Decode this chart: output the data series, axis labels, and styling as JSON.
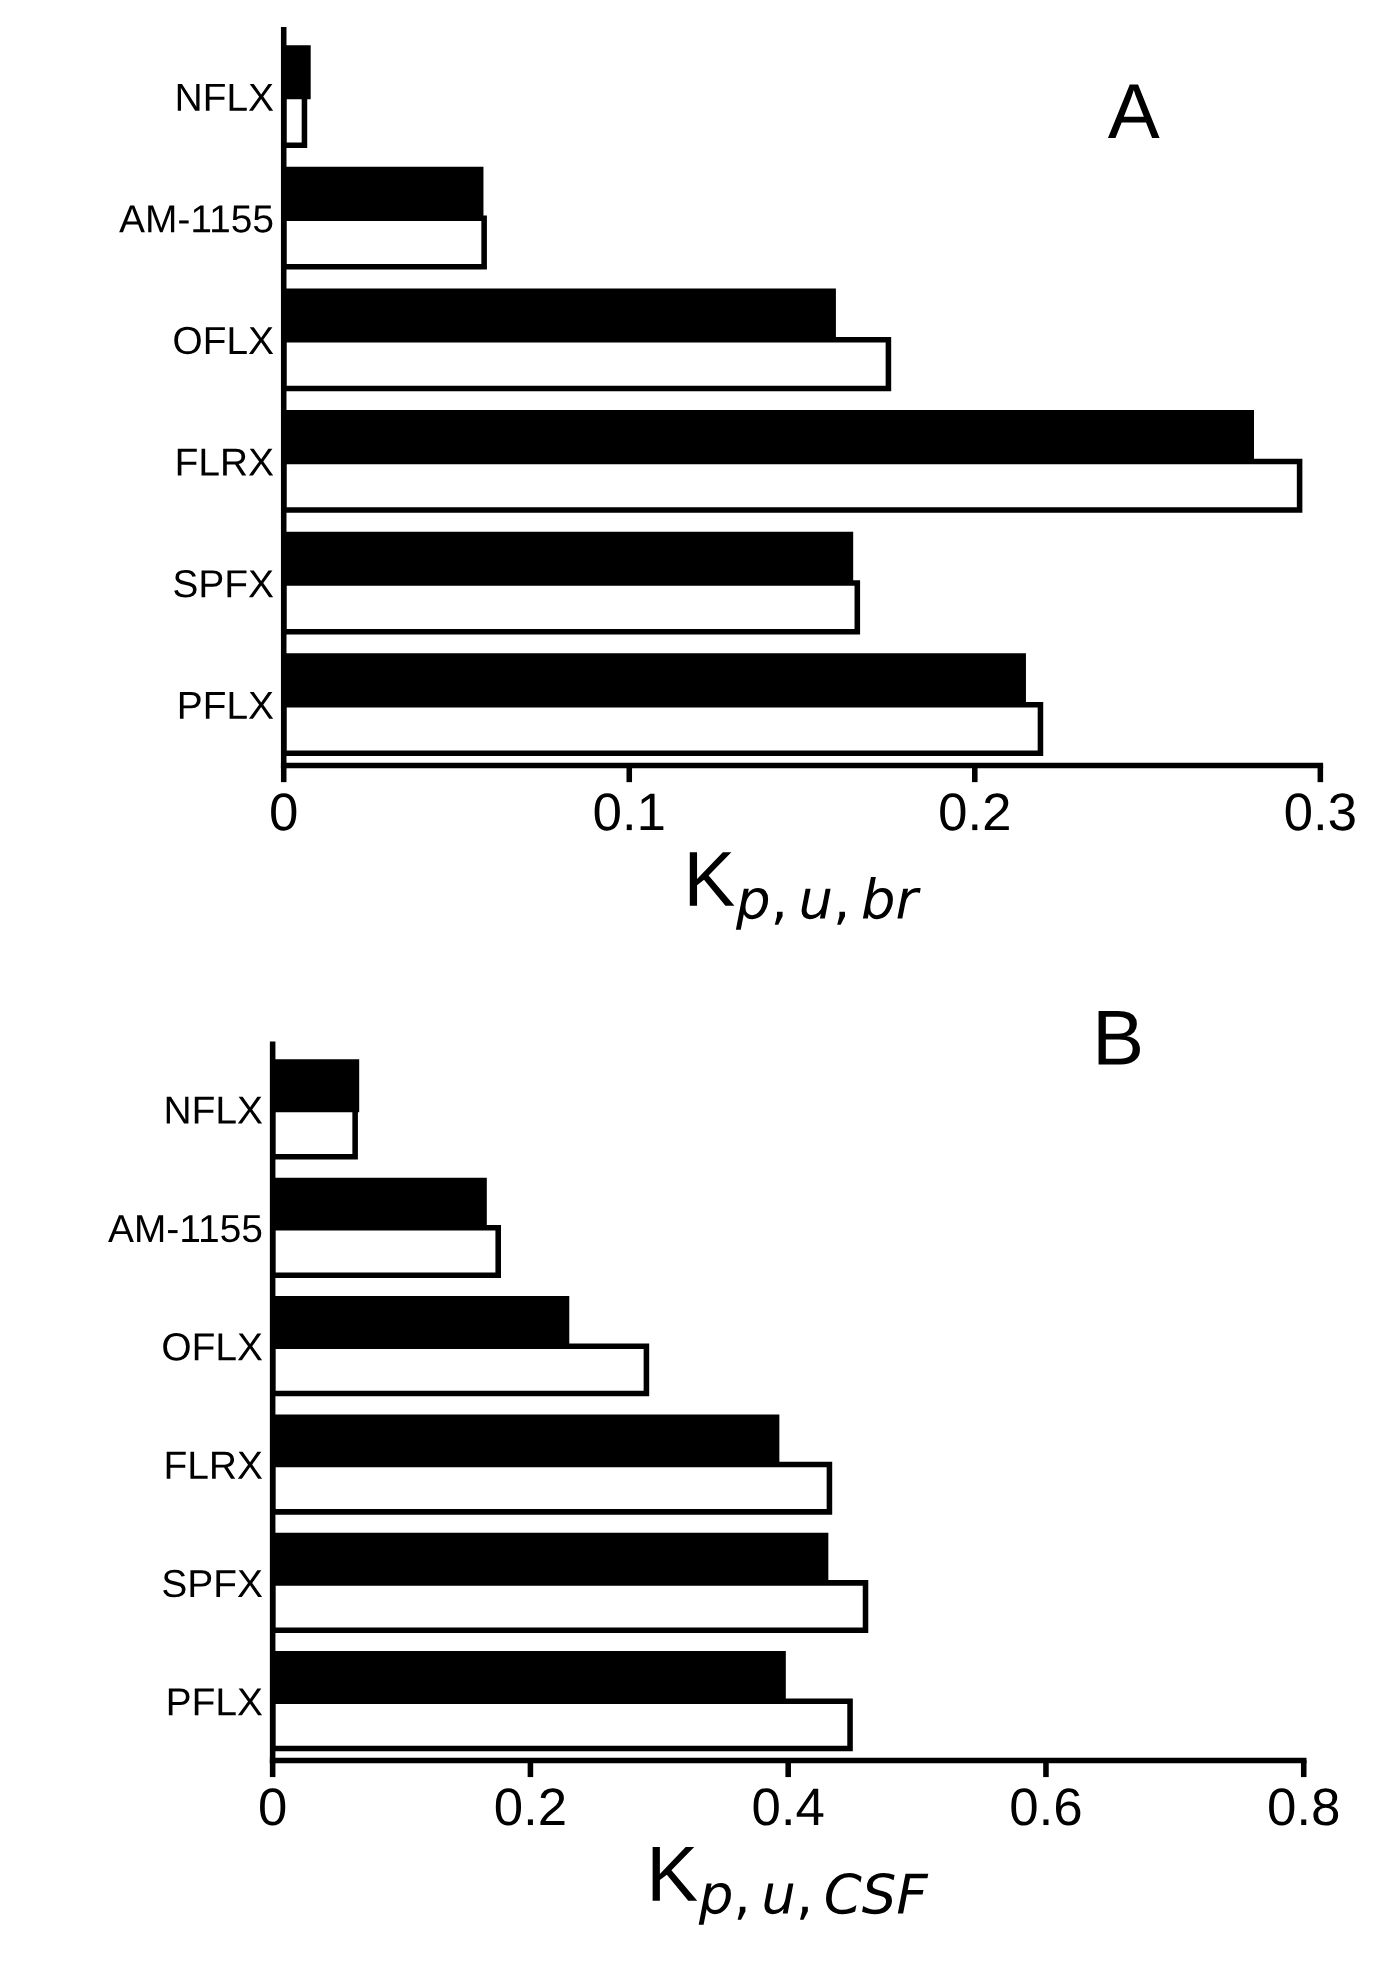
{
  "chart_data": [
    {
      "type": "bar",
      "orientation": "horizontal",
      "categories": [
        "NFLX",
        "AM-1155",
        "OFLX",
        "FLRX",
        "SPFX",
        "PFLX"
      ],
      "xlabel": "K$_{p,u,br}$",
      "annotations": [
        "A"
      ],
      "xlim": [
        0,
        0.3
      ],
      "xticks": [
        0,
        0.1,
        0.2,
        0.3
      ],
      "grid": false,
      "legend": false,
      "series": [
        {
          "color": "#000000",
          "values": [
            0.007,
            0.057,
            0.159,
            0.28,
            0.164,
            0.214
          ]
        },
        {
          "color": "#ffffff",
          "values": [
            0.006,
            0.058,
            0.175,
            0.294,
            0.166,
            0.219
          ]
        }
      ]
    },
    {
      "type": "bar",
      "orientation": "horizontal",
      "categories": [
        "NFLX",
        "AM-1155",
        "OFLX",
        "FLRX",
        "SPFX",
        "PFLX"
      ],
      "xlabel": "K$_{p,u,CSF}$",
      "annotations": [
        "B"
      ],
      "xlim": [
        0,
        0.8
      ],
      "xticks": [
        0,
        0.2,
        0.4,
        0.6,
        0.8
      ],
      "grid": false,
      "legend": false,
      "series": [
        {
          "color": "#000000",
          "values": [
            0.065,
            0.164,
            0.228,
            0.391,
            0.429,
            0.396
          ]
        },
        {
          "color": "#ffffff",
          "values": [
            0.064,
            0.175,
            0.29,
            0.432,
            0.46,
            0.448
          ]
        }
      ]
    }
  ]
}
